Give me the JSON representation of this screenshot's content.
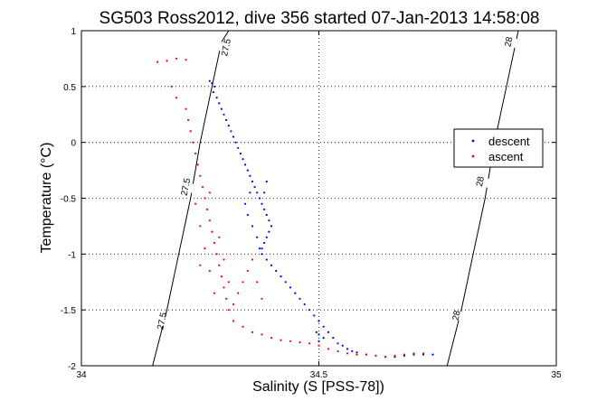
{
  "chart_data": {
    "type": "scatter",
    "title": "SG503 Ross2012, dive 356 started 07-Jan-2013 14:58:08",
    "xlabel": "Salinity (S [PSS-78])",
    "ylabel": "Temperature (°C)",
    "xlim": [
      34,
      35
    ],
    "ylim": [
      -2,
      1
    ],
    "xticks": [
      34,
      34.5,
      35
    ],
    "xtick_labels": [
      "34",
      "34.5",
      "35"
    ],
    "yticks": [
      -2,
      -1.5,
      -1,
      -0.5,
      0,
      0.5,
      1
    ],
    "ytick_labels": [
      "-2",
      "-1.5",
      "-1",
      "-0.5",
      "0",
      "0.5",
      "1"
    ],
    "grid": true,
    "legend": {
      "placement": "right",
      "entries": [
        "descent",
        "ascent"
      ]
    },
    "colors": {
      "descent": "#0000ff",
      "ascent": "#ff0000",
      "isopycnal": "#000000"
    },
    "isopycnals": [
      {
        "points": [
          [
            34.15,
            -2.0
          ],
          [
            34.18,
            -1.5
          ],
          [
            34.205,
            -1.0
          ],
          [
            34.23,
            -0.5
          ],
          [
            34.25,
            0.0
          ],
          [
            34.275,
            0.5
          ],
          [
            34.295,
            0.9
          ],
          [
            34.31,
            1.0
          ]
        ],
        "labels": [
          {
            "text": "27.5",
            "at": [
              34.17,
              -1.6
            ]
          },
          {
            "text": "27.5",
            "at": [
              34.22,
              -0.4
            ]
          },
          {
            "text": "27.5",
            "at": [
              34.305,
              0.85
            ]
          }
        ]
      },
      {
        "points": [
          [
            34.77,
            -2.0
          ],
          [
            34.8,
            -1.5
          ],
          [
            34.825,
            -1.0
          ],
          [
            34.85,
            -0.5
          ],
          [
            34.87,
            0.0
          ],
          [
            34.895,
            0.5
          ],
          [
            34.92,
            1.0
          ]
        ],
        "labels": [
          {
            "text": "28",
            "at": [
              34.79,
              -1.55
            ]
          },
          {
            "text": "28",
            "at": [
              34.84,
              -0.35
            ]
          },
          {
            "text": "28",
            "at": [
              34.9,
              0.9
            ]
          }
        ]
      }
    ],
    "series": [
      {
        "name": "descent",
        "points": [
          [
            34.27,
            0.55
          ],
          [
            34.275,
            0.53
          ],
          [
            34.28,
            0.5
          ],
          [
            34.278,
            0.45
          ],
          [
            34.285,
            0.4
          ],
          [
            34.29,
            0.35
          ],
          [
            34.295,
            0.3
          ],
          [
            34.3,
            0.25
          ],
          [
            34.305,
            0.2
          ],
          [
            34.31,
            0.15
          ],
          [
            34.315,
            0.1
          ],
          [
            34.32,
            0.05
          ],
          [
            34.325,
            0.0
          ],
          [
            34.33,
            -0.05
          ],
          [
            34.335,
            -0.1
          ],
          [
            34.34,
            -0.15
          ],
          [
            34.345,
            -0.2
          ],
          [
            34.35,
            -0.25
          ],
          [
            34.355,
            -0.3
          ],
          [
            34.36,
            -0.35
          ],
          [
            34.365,
            -0.4
          ],
          [
            34.37,
            -0.45
          ],
          [
            34.375,
            -0.5
          ],
          [
            34.38,
            -0.55
          ],
          [
            34.385,
            -0.6
          ],
          [
            34.39,
            -0.65
          ],
          [
            34.395,
            -0.7
          ],
          [
            34.4,
            -0.75
          ],
          [
            34.395,
            -0.8
          ],
          [
            34.39,
            -0.85
          ],
          [
            34.385,
            -0.9
          ],
          [
            34.38,
            -0.95
          ],
          [
            34.38,
            -1.0
          ],
          [
            34.39,
            -1.05
          ],
          [
            34.4,
            -1.1
          ],
          [
            34.41,
            -1.15
          ],
          [
            34.42,
            -1.2
          ],
          [
            34.43,
            -1.25
          ],
          [
            34.44,
            -1.3
          ],
          [
            34.45,
            -1.35
          ],
          [
            34.46,
            -1.4
          ],
          [
            34.47,
            -1.45
          ],
          [
            34.48,
            -1.5
          ],
          [
            34.49,
            -1.55
          ],
          [
            34.5,
            -1.6
          ],
          [
            34.51,
            -1.65
          ],
          [
            34.52,
            -1.7
          ],
          [
            34.53,
            -1.75
          ],
          [
            34.54,
            -1.8
          ],
          [
            34.55,
            -1.82
          ],
          [
            34.56,
            -1.85
          ],
          [
            34.57,
            -1.87
          ],
          [
            34.58,
            -1.88
          ],
          [
            34.6,
            -1.9
          ],
          [
            34.62,
            -1.91
          ],
          [
            34.64,
            -1.92
          ],
          [
            34.66,
            -1.92
          ],
          [
            34.68,
            -1.91
          ],
          [
            34.7,
            -1.9
          ],
          [
            34.72,
            -1.9
          ],
          [
            34.74,
            -1.9
          ],
          [
            34.345,
            -0.55
          ],
          [
            34.35,
            -0.65
          ],
          [
            34.36,
            -0.75
          ],
          [
            34.37,
            -0.85
          ],
          [
            34.375,
            -0.95
          ],
          [
            34.385,
            -0.45
          ],
          [
            34.39,
            -0.35
          ],
          [
            34.355,
            -0.45
          ],
          [
            34.5,
            -1.72
          ],
          [
            34.51,
            -1.75
          ],
          [
            34.495,
            -1.7
          ],
          [
            34.5,
            -1.78
          ]
        ]
      },
      {
        "name": "ascent",
        "points": [
          [
            34.16,
            0.72
          ],
          [
            34.18,
            0.73
          ],
          [
            34.2,
            0.75
          ],
          [
            34.22,
            0.74
          ],
          [
            34.19,
            0.5
          ],
          [
            34.2,
            0.4
          ],
          [
            34.22,
            0.3
          ],
          [
            34.225,
            0.2
          ],
          [
            34.23,
            0.1
          ],
          [
            34.235,
            0.0
          ],
          [
            34.24,
            -0.1
          ],
          [
            34.245,
            -0.2
          ],
          [
            34.25,
            -0.3
          ],
          [
            34.255,
            -0.4
          ],
          [
            34.26,
            -0.5
          ],
          [
            34.265,
            -0.6
          ],
          [
            34.27,
            -0.7
          ],
          [
            34.275,
            -0.8
          ],
          [
            34.28,
            -0.9
          ],
          [
            34.285,
            -1.0
          ],
          [
            34.29,
            -1.1
          ],
          [
            34.295,
            -1.2
          ],
          [
            34.3,
            -1.3
          ],
          [
            34.305,
            -1.4
          ],
          [
            34.31,
            -1.5
          ],
          [
            34.32,
            -1.6
          ],
          [
            34.34,
            -1.65
          ],
          [
            34.36,
            -1.7
          ],
          [
            34.38,
            -1.72
          ],
          [
            34.4,
            -1.75
          ],
          [
            34.42,
            -1.77
          ],
          [
            34.44,
            -1.78
          ],
          [
            34.46,
            -1.79
          ],
          [
            34.48,
            -1.8
          ],
          [
            34.5,
            -1.82
          ],
          [
            34.52,
            -1.85
          ],
          [
            34.54,
            -1.87
          ],
          [
            34.56,
            -1.89
          ],
          [
            34.58,
            -1.9
          ],
          [
            34.6,
            -1.9
          ],
          [
            34.62,
            -1.91
          ],
          [
            34.64,
            -1.92
          ],
          [
            34.66,
            -1.91
          ],
          [
            34.68,
            -1.9
          ],
          [
            34.7,
            -1.89
          ],
          [
            34.72,
            -1.89
          ],
          [
            34.25,
            -0.75
          ],
          [
            34.26,
            -0.95
          ],
          [
            34.27,
            -1.15
          ],
          [
            34.28,
            -1.35
          ],
          [
            34.29,
            -0.85
          ],
          [
            34.3,
            -1.05
          ],
          [
            34.31,
            -1.25
          ],
          [
            34.32,
            -1.45
          ],
          [
            34.33,
            -1.35
          ],
          [
            34.34,
            -1.25
          ],
          [
            34.35,
            -1.15
          ],
          [
            34.36,
            -1.05
          ],
          [
            34.37,
            -1.25
          ],
          [
            34.38,
            -1.4
          ],
          [
            34.24,
            -0.55
          ],
          [
            34.25,
            -1.1
          ],
          [
            34.27,
            -0.45
          ]
        ]
      }
    ]
  }
}
